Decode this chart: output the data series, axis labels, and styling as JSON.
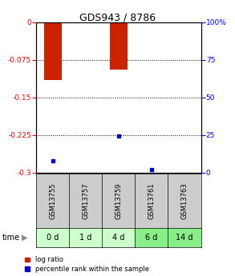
{
  "title": "GDS943 / 8786",
  "samples": [
    "GSM13755",
    "GSM13757",
    "GSM13759",
    "GSM13761",
    "GSM13763"
  ],
  "time_labels": [
    "0 d",
    "1 d",
    "4 d",
    "6 d",
    "14 d"
  ],
  "log_ratio": [
    -0.115,
    0.0,
    -0.095,
    0.0,
    0.0
  ],
  "percentile_rank": [
    8.0,
    0.0,
    24.0,
    2.0,
    0.0
  ],
  "ylim_left": [
    -0.3,
    0.0
  ],
  "ylim_right": [
    0,
    100
  ],
  "yticks_left": [
    0,
    -0.075,
    -0.15,
    -0.225,
    -0.3
  ],
  "yticks_right": [
    0,
    25,
    50,
    75,
    100
  ],
  "bar_color": "#cc2200",
  "dot_color": "#0000cc",
  "bg_plot": "#ffffff",
  "bg_sample": "#cccccc",
  "bg_time_0": "#ccffcc",
  "bg_time_1": "#ccffcc",
  "bg_time_2": "#ccffcc",
  "bg_time_3": "#88ee88",
  "bg_time_4": "#88ee88",
  "title_fontsize": 9,
  "tick_fontsize": 6.5,
  "sample_fontsize": 6,
  "time_fontsize": 7,
  "legend_fontsize": 6
}
